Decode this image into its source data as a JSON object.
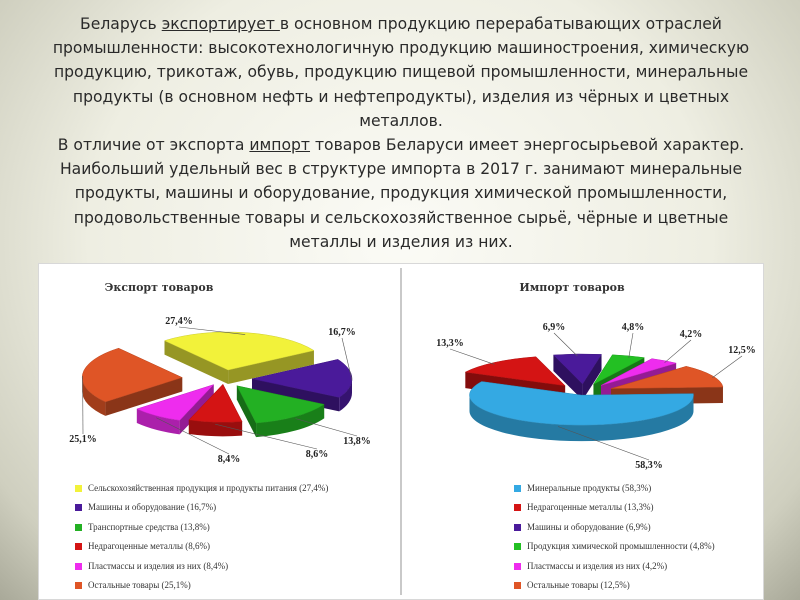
{
  "intro": {
    "p1_start": "Беларусь ",
    "p1_link": "экспортирует ",
    "p1_rest": "в основном продукцию перерабатывающих отраслей промышленности: высокотехнологичную продукцию машиностроения, химическую продукцию, трикотаж, обувь, продукцию пищевой промышленности, минеральные продукты (в основном нефть и нефтепродукты), изделия из чёрных и цветных металлов.",
    "p2_start": "В отличие от экспорта ",
    "p2_link": "импорт",
    "p2_rest": " товаров Беларуси имеет энергосырьевой характер. Наибольший удельный вес в структуре импорта в 2017 г. занимают минеральные продукты, машины и оборудование, продукция химической промышленности, продовольственные товары и сельскохозяйственное сырьё, чёрные и цветные металлы и изделия из них."
  },
  "chart_data": [
    {
      "type": "pie",
      "title": "Экспорт товаров",
      "slices": [
        {
          "label": "Сельскохозяйственная продукция и продукты питания (27,4%)",
          "value": 27.4,
          "value_label": "27,4%",
          "color": "#f2f23a"
        },
        {
          "label": "Машины и оборудование (16,7%)",
          "value": 16.7,
          "value_label": "16,7%",
          "color": "#4a1a9a"
        },
        {
          "label": "Транспортные средства (13,8%)",
          "value": 13.8,
          "value_label": "13,8%",
          "color": "#23b023"
        },
        {
          "label": "Недрагоценные металлы (8,6%)",
          "value": 8.6,
          "value_label": "8,6%",
          "color": "#d41414"
        },
        {
          "label": "Пластмассы и изделия из них (8,4%)",
          "value": 8.4,
          "value_label": "8,4%",
          "color": "#ee2cee"
        },
        {
          "label": "Остальные товары (25,1%)",
          "value": 25.1,
          "value_label": "25,1%",
          "color": "#df5526"
        }
      ]
    },
    {
      "type": "pie",
      "title": "Импорт товаров",
      "slices": [
        {
          "label": "Минеральные продукты (58,3%)",
          "value": 58.3,
          "value_label": "58,3%",
          "color": "#34a9e3"
        },
        {
          "label": "Недрагоценные металлы (13,3%)",
          "value": 13.3,
          "value_label": "13,3%",
          "color": "#d41414"
        },
        {
          "label": "Машины и оборудование (6,9%)",
          "value": 6.9,
          "value_label": "6,9%",
          "color": "#4a1a9a"
        },
        {
          "label": "Продукция химической промышленности (4,8%)",
          "value": 4.8,
          "value_label": "4,8%",
          "color": "#23c023"
        },
        {
          "label": "Пластмассы и изделия из них (4,2%)",
          "value": 4.2,
          "value_label": "4,2%",
          "color": "#ee2cee"
        },
        {
          "label": "Остальные товары (12,5%)",
          "value": 12.5,
          "value_label": "12,5%",
          "color": "#df5526"
        }
      ]
    }
  ]
}
